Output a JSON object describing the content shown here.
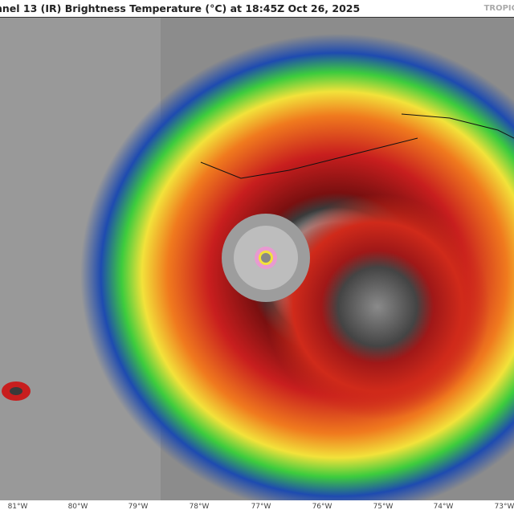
{
  "header": {
    "title": "nnel 13 (IR) Brightness Temperature (°C) at 18:45Z Oct 26, 2025",
    "brand": "TROPIC"
  },
  "map": {
    "imagery": "GOES IR enhanced satellite image of hurricane with clear eye",
    "colors": {
      "cold_gray": "#8a8a8a",
      "blue": "#1e4bb0",
      "green": "#3dcc3d",
      "yellow": "#f2e23a",
      "orange": "#f07a1e",
      "red": "#c81e1e",
      "dark_red": "#7a1010",
      "pink": "#e89ad0"
    }
  },
  "axis": {
    "longitude_labels": [
      "81°W",
      "80°W",
      "79°W",
      "78°W",
      "77°W",
      "76°W",
      "75°W",
      "74°W",
      "73°W"
    ]
  }
}
